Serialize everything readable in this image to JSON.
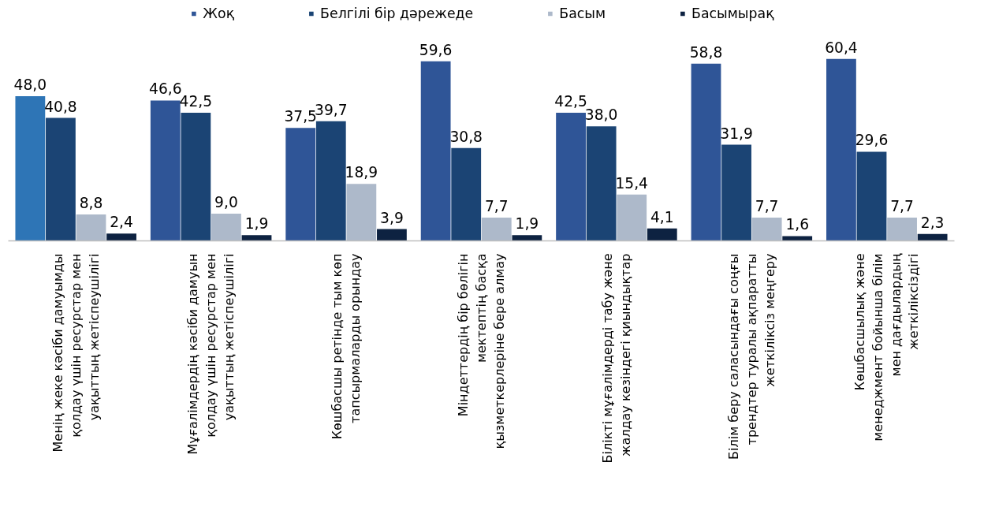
{
  "chart_data": {
    "type": "bar",
    "categories": [
      "Менің жеке кәсіби дамуымды\nқолдау үшін ресурстар мен\nуақыттың жетіспеушілігі",
      "Мұғалімдердің кәсіби дамуын\nқолдау үшін ресурстар мен\nуақыттың жетіспеушілігі",
      "Көшбасшы ретінде тым көп\nтапсырмаларды орындау",
      "Міндеттердің бір бөлігін\nмектептің басқа\nқызметкерлеріне бере алмау",
      "Білікті мұғалімдерді табу және\nжалдау кезіндегі қиындықтар",
      "Білім беру саласындағы соңғы\nтрендтер туралы ақпаратты\nжеткіліксіз меңгеру",
      "Көшбасшылық және\nменеджмент бойынша білім\nмен дағдылардың\nжеткіліксіздігі"
    ],
    "series": [
      {
        "name": "Жоқ",
        "color": "#2f5597",
        "colors": [
          "#2e75b6",
          "#2f5597",
          "#2f5597",
          "#2f5597",
          "#2f5597",
          "#2f5597",
          "#2f5597"
        ],
        "values": [
          48.0,
          46.6,
          37.5,
          59.6,
          42.5,
          58.8,
          60.4
        ],
        "value_labels": [
          "48,0",
          "46,6",
          "37,5",
          "59,6",
          "42,5",
          "58,8",
          "60,4"
        ]
      },
      {
        "name": "Белгілі бір дәрежеде",
        "color": "#1b4474",
        "values": [
          40.8,
          42.5,
          39.7,
          30.8,
          38.0,
          31.9,
          29.6
        ],
        "value_labels": [
          "40,8",
          "42,5",
          "39,7",
          "30,8",
          "38,0",
          "31,9",
          "29,6"
        ]
      },
      {
        "name": "Басым",
        "color": "#adb9ca",
        "values": [
          8.8,
          9.0,
          18.9,
          7.7,
          15.4,
          7.7,
          7.7
        ],
        "value_labels": [
          "8,8",
          "9,0",
          "18,9",
          "7,7",
          "15,4",
          "7,7",
          "7,7"
        ]
      },
      {
        "name": "Басымырақ",
        "color": "#0d2241",
        "values": [
          2.4,
          1.9,
          3.9,
          1.9,
          4.1,
          1.6,
          2.3
        ],
        "value_labels": [
          "2,4",
          "1,9",
          "3,9",
          "1,9",
          "4,1",
          "1,6",
          "2,3"
        ]
      }
    ],
    "legend": "top"
  }
}
